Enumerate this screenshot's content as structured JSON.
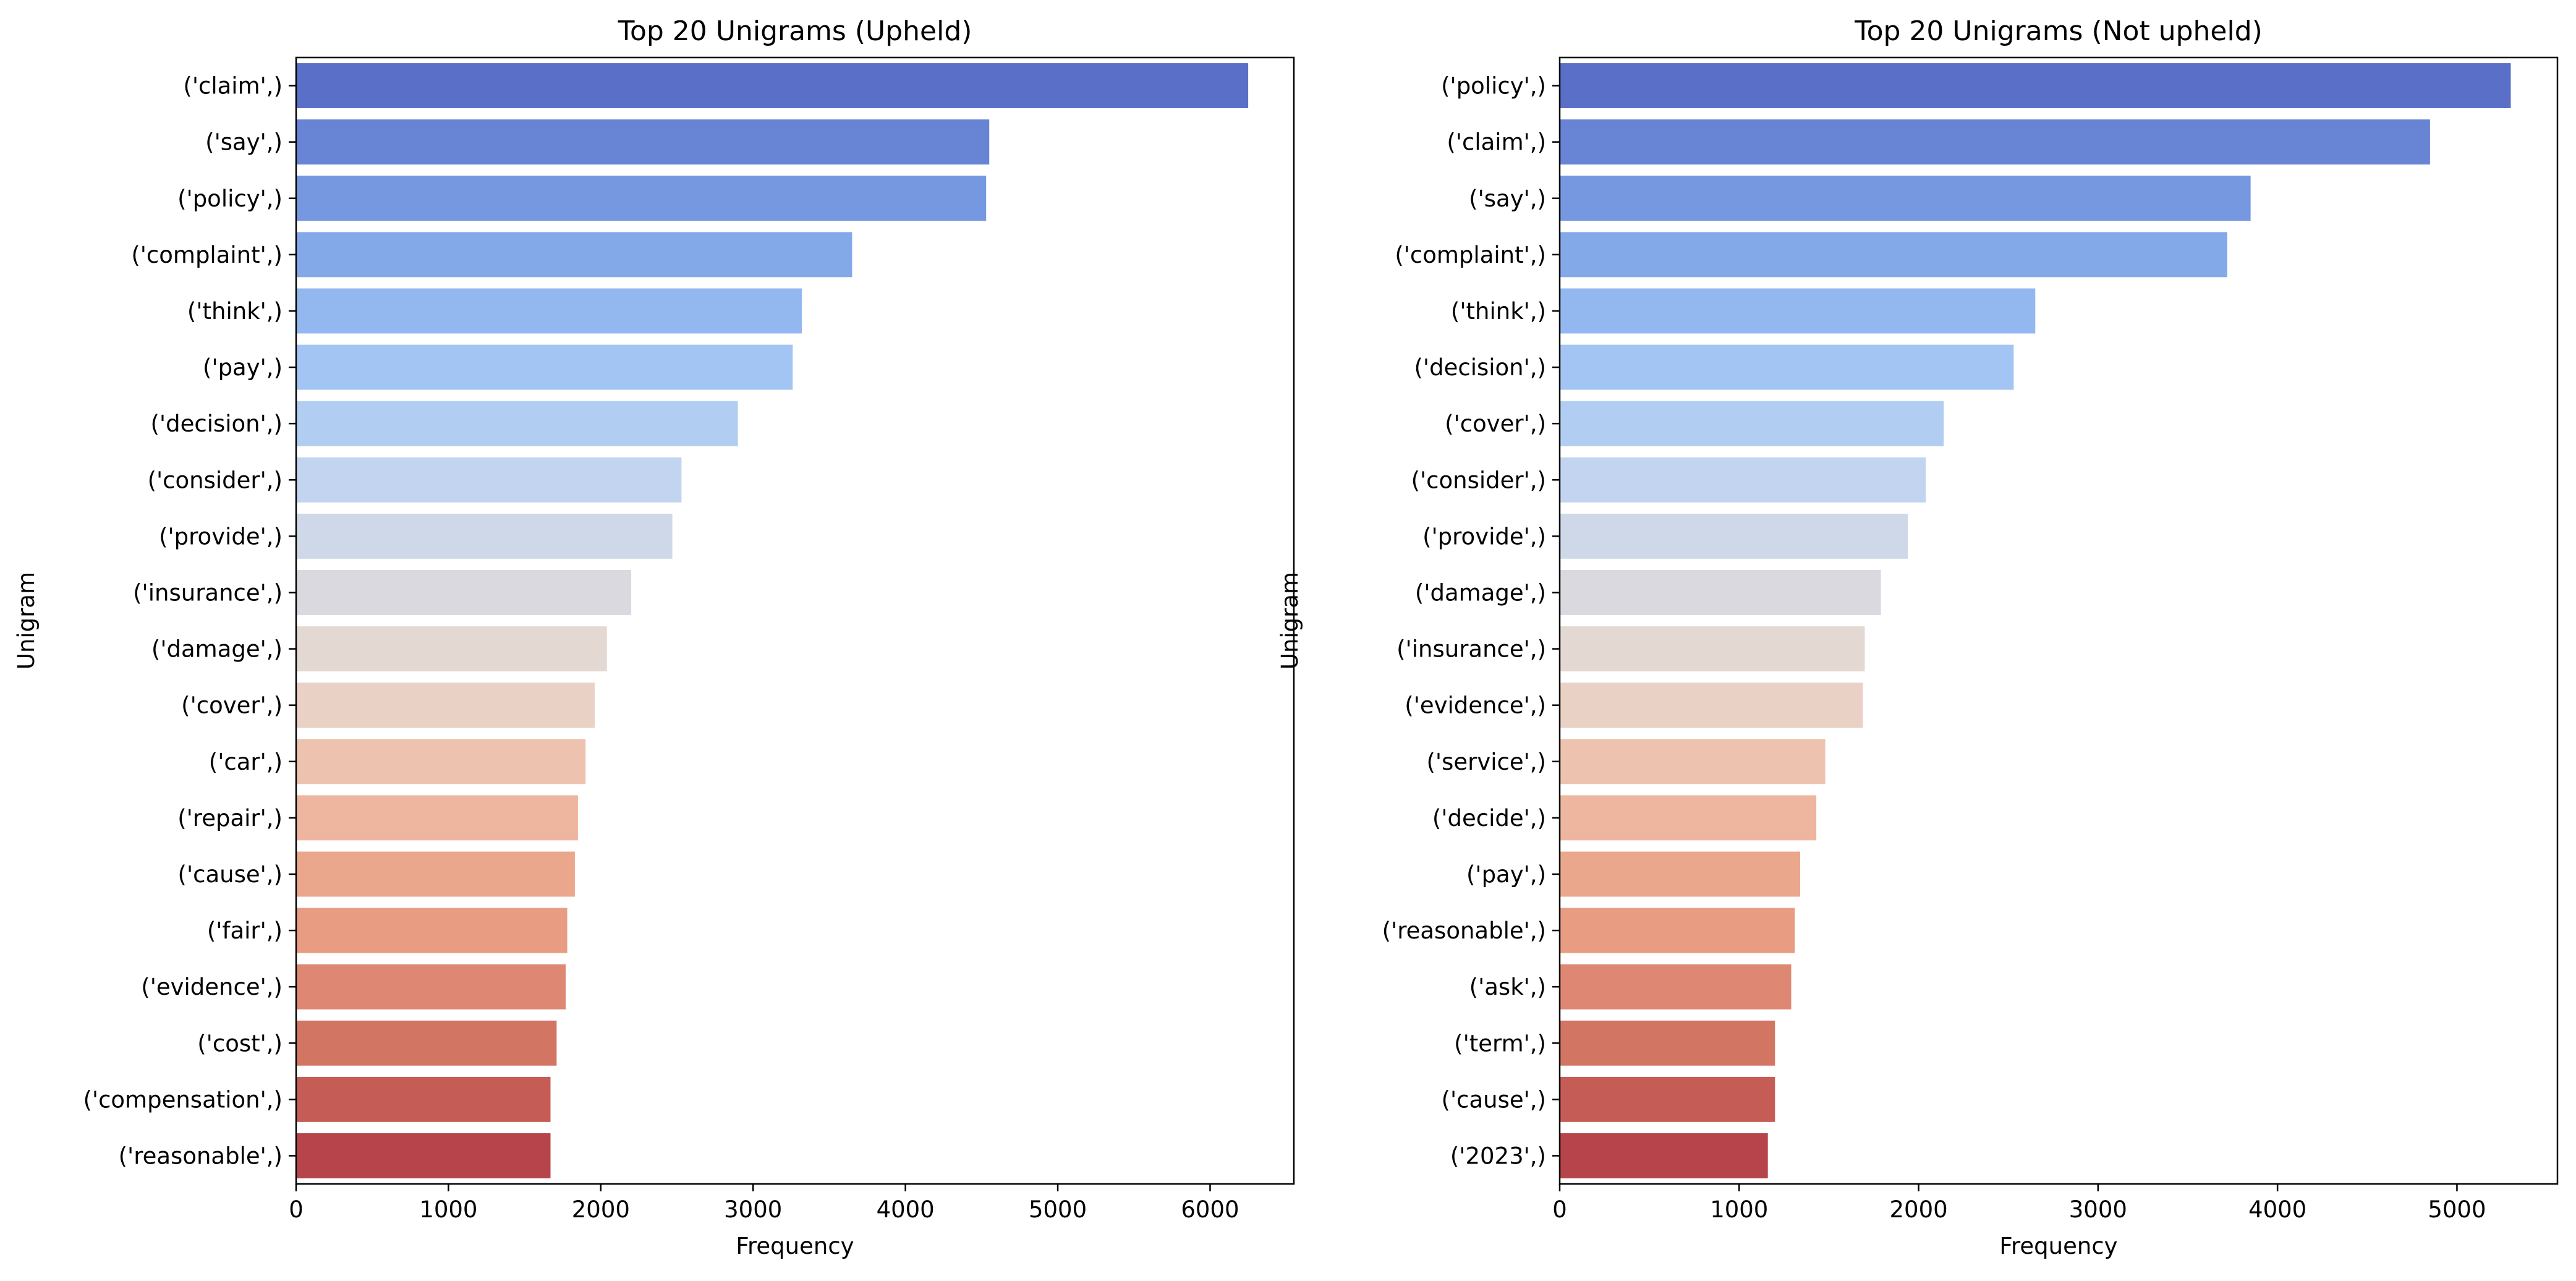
{
  "chart_data": [
    {
      "type": "bar",
      "orientation": "horizontal",
      "title": "Top 20 Unigrams (Upheld)",
      "xlabel": "Frequency",
      "ylabel": "Unigram",
      "xlim": [
        0,
        6550
      ],
      "xticks": [
        0,
        1000,
        2000,
        3000,
        4000,
        5000,
        6000
      ],
      "grid": false,
      "categories": [
        "('claim',)",
        "('say',)",
        "('policy',)",
        "('complaint',)",
        "('think',)",
        "('pay',)",
        "('decision',)",
        "('consider',)",
        "('provide',)",
        "('insurance',)",
        "('damage',)",
        "('cover',)",
        "('car',)",
        "('repair',)",
        "('cause',)",
        "('fair',)",
        "('evidence',)",
        "('cost',)",
        "('compensation',)",
        "('reasonable',)"
      ],
      "values": [
        6250,
        4550,
        4530,
        3650,
        3320,
        3260,
        2900,
        2530,
        2470,
        2200,
        2040,
        1960,
        1900,
        1850,
        1830,
        1780,
        1770,
        1710,
        1670,
        1670
      ],
      "palette": [
        "#5a6fc7",
        "#6784d5",
        "#7598e0",
        "#84a9e9",
        "#93b8ef",
        "#a3c5f3",
        "#b2cdf2",
        "#c3d4f0",
        "#cfd8e8",
        "#dad9df",
        "#e3d9d2",
        "#e9d2c5",
        "#edc3b0",
        "#eeb69e",
        "#eba78b",
        "#e89c82",
        "#de8773",
        "#d27563",
        "#c65c56",
        "#b6444a"
      ]
    },
    {
      "type": "bar",
      "orientation": "horizontal",
      "title": "Top 20 Unigrams (Not upheld)",
      "xlabel": "Frequency",
      "ylabel": "Unigram",
      "xlim": [
        0,
        5560
      ],
      "xticks": [
        0,
        1000,
        2000,
        3000,
        4000,
        5000
      ],
      "grid": false,
      "categories": [
        "('policy',)",
        "('claim',)",
        "('say',)",
        "('complaint',)",
        "('think',)",
        "('decision',)",
        "('cover',)",
        "('consider',)",
        "('provide',)",
        "('damage',)",
        "('insurance',)",
        "('evidence',)",
        "('service',)",
        "('decide',)",
        "('pay',)",
        "('reasonable',)",
        "('ask',)",
        "('term',)",
        "('cause',)",
        "('2023',)"
      ],
      "values": [
        5300,
        4850,
        3850,
        3720,
        2650,
        2530,
        2140,
        2040,
        1940,
        1790,
        1700,
        1690,
        1480,
        1430,
        1340,
        1310,
        1290,
        1200,
        1200,
        1160
      ],
      "palette": [
        "#5a6fc7",
        "#6784d5",
        "#7598e0",
        "#84a9e9",
        "#93b8ef",
        "#a3c5f3",
        "#b2cdf2",
        "#c3d4f0",
        "#cfd8e8",
        "#dad9df",
        "#e3d9d2",
        "#e9d2c5",
        "#edc3b0",
        "#eeb69e",
        "#eba78b",
        "#e89c82",
        "#de8773",
        "#d27563",
        "#c65c56",
        "#b6444a"
      ]
    }
  ]
}
